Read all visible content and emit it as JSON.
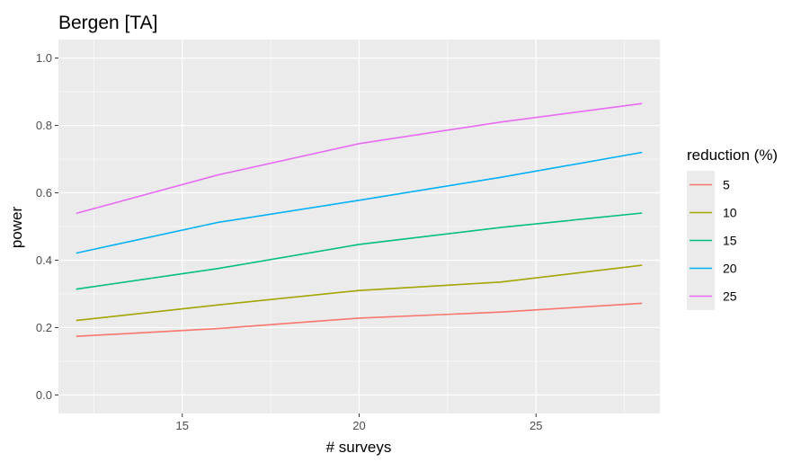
{
  "chart_data": {
    "type": "line",
    "title": "Bergen  [TA]",
    "xlabel": "# surveys",
    "ylabel": "power",
    "xlim": [
      11.5,
      28.5
    ],
    "ylim": [
      -0.055,
      1.055
    ],
    "x_ticks": [
      15,
      20,
      25
    ],
    "x_tick_labels": [
      "15",
      "20",
      "25"
    ],
    "x_minor_ticks": [
      12.5,
      17.5,
      22.5,
      27.5
    ],
    "y_ticks": [
      0.0,
      0.2,
      0.4,
      0.6,
      0.8,
      1.0
    ],
    "y_tick_labels": [
      "0.0",
      "0.2",
      "0.4",
      "0.6",
      "0.8",
      "1.0"
    ],
    "y_minor_ticks": [
      0.1,
      0.3,
      0.5,
      0.7,
      0.9
    ],
    "grid": true,
    "legend": {
      "title": "reduction (%)",
      "position": "right"
    },
    "x": [
      12,
      16,
      20,
      24,
      28
    ],
    "series": [
      {
        "name": "5",
        "color": "#F8766D",
        "values": [
          0.174,
          0.197,
          0.228,
          0.246,
          0.272
        ]
      },
      {
        "name": "10",
        "color": "#A3A500",
        "values": [
          0.221,
          0.267,
          0.31,
          0.335,
          0.385
        ]
      },
      {
        "name": "15",
        "color": "#00BF7D",
        "values": [
          0.314,
          0.375,
          0.447,
          0.497,
          0.54
        ]
      },
      {
        "name": "20",
        "color": "#00B0F6",
        "values": [
          0.421,
          0.512,
          0.578,
          0.646,
          0.72
        ]
      },
      {
        "name": "25",
        "color": "#E76BF3",
        "values": [
          0.539,
          0.653,
          0.746,
          0.81,
          0.865
        ]
      }
    ]
  }
}
